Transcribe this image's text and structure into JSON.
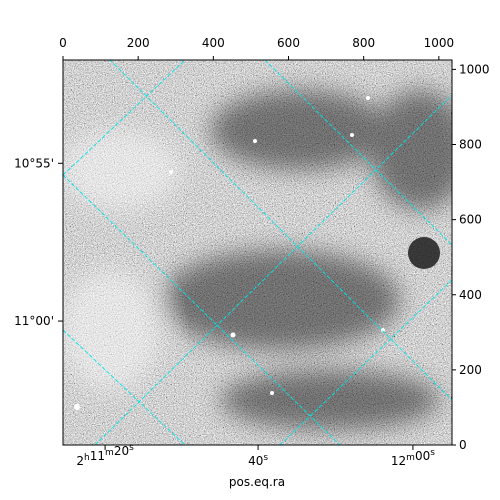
{
  "chart_data": {
    "type": "image",
    "xlabel": "pos.eq.ra",
    "xlim": [
      0,
      1035
    ],
    "ylim": [
      0,
      1025
    ],
    "xticks": [
      0,
      200,
      400,
      600,
      800,
      1000
    ],
    "yticks": [
      0,
      200,
      400,
      600,
      800,
      1000
    ],
    "ra_ticks": [
      {
        "value": 112,
        "label": "2h11m20s"
      },
      {
        "value": 519,
        "label": "40s"
      },
      {
        "value": 931,
        "label": "12m00s"
      }
    ],
    "dec_ticks": [
      {
        "value": 750,
        "label": "10°55'"
      },
      {
        "value": 330,
        "label": "11°00'"
      }
    ],
    "grid": true,
    "grid_color": "#00e5e5"
  }
}
